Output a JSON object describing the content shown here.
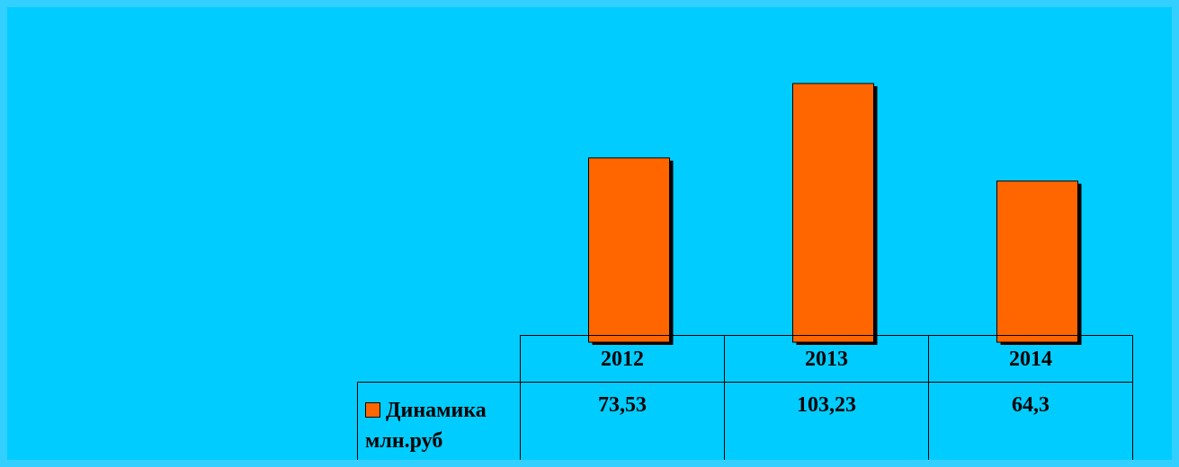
{
  "chart_data": {
    "type": "bar",
    "categories": [
      "2012",
      "2013",
      "2014"
    ],
    "series": [
      {
        "name": "Динамика млн.руб",
        "color": "#FF6600",
        "values": [
          73.53,
          103.23,
          64.3
        ],
        "value_labels": [
          "73,53",
          "103,23",
          "64,3"
        ]
      }
    ]
  }
}
